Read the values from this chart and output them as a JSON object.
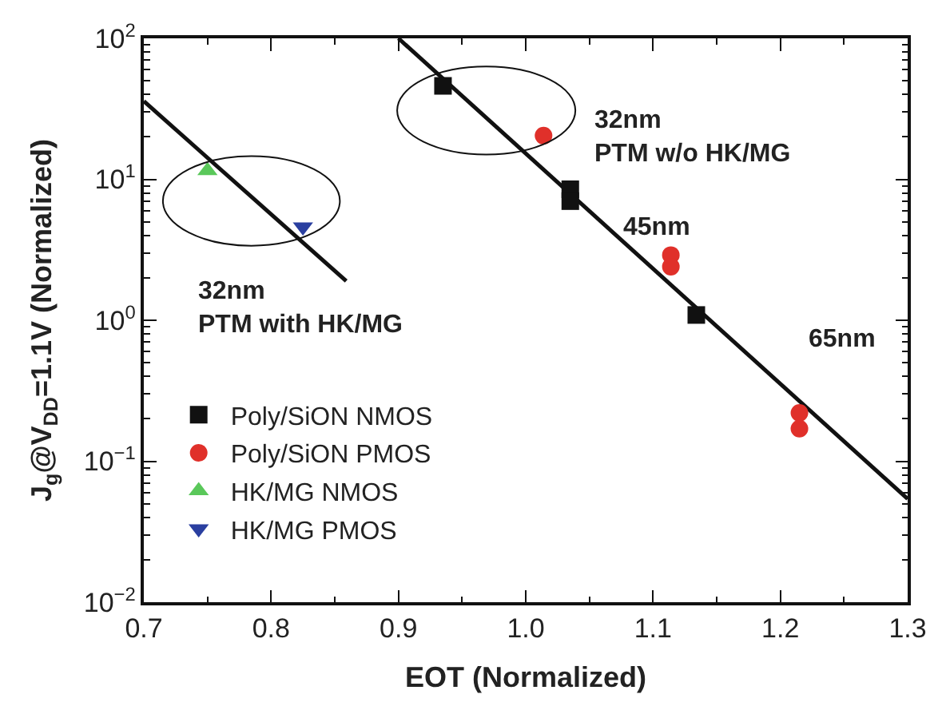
{
  "chart_data": {
    "type": "scatter",
    "xlabel": "EOT (Normalized)",
    "ylabel": "J$_{g}$@V$_{DD}$=1.1V (Normalized)",
    "log": "y",
    "xlim": [
      0.7,
      1.3
    ],
    "xticks": [
      {
        "value": 0.7,
        "label": "0.7"
      },
      {
        "value": 0.8,
        "label": "0.8"
      },
      {
        "value": 0.9,
        "label": "0.9"
      },
      {
        "value": 1.0,
        "label": "1.0"
      },
      {
        "value": 1.1,
        "label": "1.1"
      },
      {
        "value": 1.2,
        "label": "1.2"
      },
      {
        "value": 1.3,
        "label": "1.3"
      }
    ],
    "ylim": [
      0.01,
      100
    ],
    "yticks": [
      {
        "value": 0.01,
        "label": "10$^{−2}$"
      },
      {
        "value": 0.1,
        "label": "10$^{−1}$"
      },
      {
        "value": 1,
        "label": "10$^{0}$"
      },
      {
        "value": 10,
        "label": "10$^{1}$"
      },
      {
        "value": 100,
        "label": "10$^{2}$"
      }
    ],
    "legend": "bottom left",
    "series": [
      {
        "name": "Poly/SiON NMOS",
        "color": "#111111",
        "marker": "square",
        "x": [
          0.935,
          1.035,
          1.035,
          1.134
        ],
        "values": [
          46,
          8.5,
          7,
          1.09
        ]
      },
      {
        "name": "Poly/SiON PMOS",
        "color": "#e0302a",
        "marker": "circle",
        "x": [
          1.014,
          1.114,
          1.114,
          1.215,
          1.215
        ],
        "values": [
          20.4,
          2.9,
          2.4,
          0.22,
          0.17
        ]
      },
      {
        "name": "HK/MG NMOS",
        "color": "#5ac85a",
        "marker": "triangle",
        "x": [
          0.75
        ],
        "values": [
          11.5
        ]
      },
      {
        "name": "HK/MG PMOS",
        "color": "#2a3fa0",
        "marker": "triangle-down",
        "x": [
          0.825
        ],
        "values": [
          4.6
        ]
      },
      {
        "type": "line",
        "color": "#111111",
        "marker": "none",
        "x": [
          0.7,
          0.859
        ],
        "values": [
          35.8,
          1.9
        ]
      },
      {
        "type": "line",
        "color": "#111111",
        "marker": "none",
        "x": [
          0.9,
          1.3
        ],
        "values": [
          100,
          0.054
        ]
      }
    ],
    "annotations": [
      "32nm\nPTM w/o HK/MG",
      "45nm",
      "65nm",
      "32nm\nPTM with HK/MG"
    ]
  }
}
